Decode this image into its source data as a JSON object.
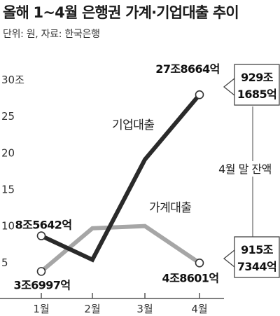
{
  "title": "올해 1~4월 은행권 가계·기업대출 추이",
  "source_note": "단위: 원, 자료: 한국은행",
  "chart_data": {
    "type": "line",
    "categories": [
      "1월",
      "2월",
      "3월",
      "4월"
    ],
    "ylim": [
      0,
      32
    ],
    "y_ticks": [
      {
        "value": 5,
        "label": "5"
      },
      {
        "value": 10,
        "label": "10"
      },
      {
        "value": 15,
        "label": "15"
      },
      {
        "value": 20,
        "label": "20"
      },
      {
        "value": 25,
        "label": "25"
      },
      {
        "value": 30,
        "label": "30조"
      }
    ],
    "series": [
      {
        "name": "기업대출",
        "color": "#2a2a2a",
        "values": [
          8.5642,
          5.3,
          19.0,
          27.8664
        ],
        "point_labels": [
          {
            "index": 0,
            "text": "8조5642억"
          },
          {
            "index": 3,
            "text": "27조8664억"
          }
        ]
      },
      {
        "name": "가계대출",
        "color": "#a6a6a6",
        "values": [
          3.6997,
          9.6,
          9.9,
          4.8601
        ],
        "point_labels": [
          {
            "index": 0,
            "text": "3조6997억"
          },
          {
            "index": 3,
            "text": "4조8601억"
          }
        ]
      }
    ],
    "balance_annotation": {
      "label": "4월 말 잔액",
      "corporate_balance": [
        "929조",
        "1685억"
      ],
      "household_balance": [
        "915조",
        "7344억"
      ]
    }
  }
}
